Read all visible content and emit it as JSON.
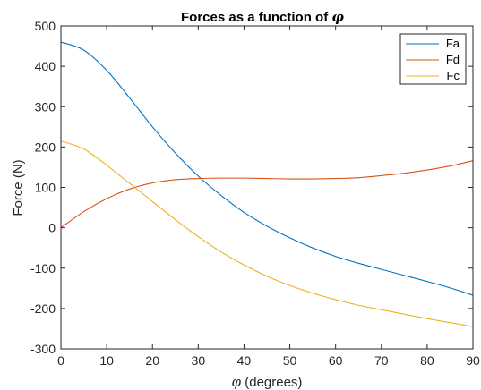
{
  "chart_data": {
    "type": "line",
    "title_prefix": "Forces as a function of",
    "title_symbol": "φ",
    "xlabel_symbol": "φ",
    "xlabel_suffix": " (degrees)",
    "ylabel": "Force (N)",
    "xlim": [
      0,
      90
    ],
    "ylim": [
      -300,
      500
    ],
    "xticks": [
      0,
      10,
      20,
      30,
      40,
      50,
      60,
      70,
      80,
      90
    ],
    "yticks": [
      -300,
      -200,
      -100,
      0,
      100,
      200,
      300,
      400,
      500
    ],
    "grid": false,
    "legend_position": "top-right",
    "x": [
      0,
      5,
      10,
      15,
      20,
      25,
      30,
      35,
      40,
      45,
      50,
      55,
      60,
      65,
      70,
      75,
      80,
      85,
      90
    ],
    "series": [
      {
        "name": "Fa",
        "color": "#0072BD",
        "values": [
          460,
          440,
          390,
          322,
          250,
          185,
          128,
          80,
          38,
          4,
          -25,
          -50,
          -71,
          -88,
          -103,
          -118,
          -133,
          -149,
          -167
        ]
      },
      {
        "name": "Fd",
        "color": "#D95319",
        "values": [
          0,
          40,
          72,
          96,
          111,
          119,
          122,
          123,
          123,
          122,
          121,
          121,
          122,
          124,
          129,
          135,
          143,
          153,
          166
        ]
      },
      {
        "name": "Fc",
        "color": "#EDB120",
        "values": [
          215,
          195,
          155,
          110,
          65,
          20,
          -22,
          -60,
          -92,
          -120,
          -143,
          -162,
          -178,
          -192,
          -203,
          -214,
          -225,
          -235,
          -245
        ]
      }
    ]
  }
}
